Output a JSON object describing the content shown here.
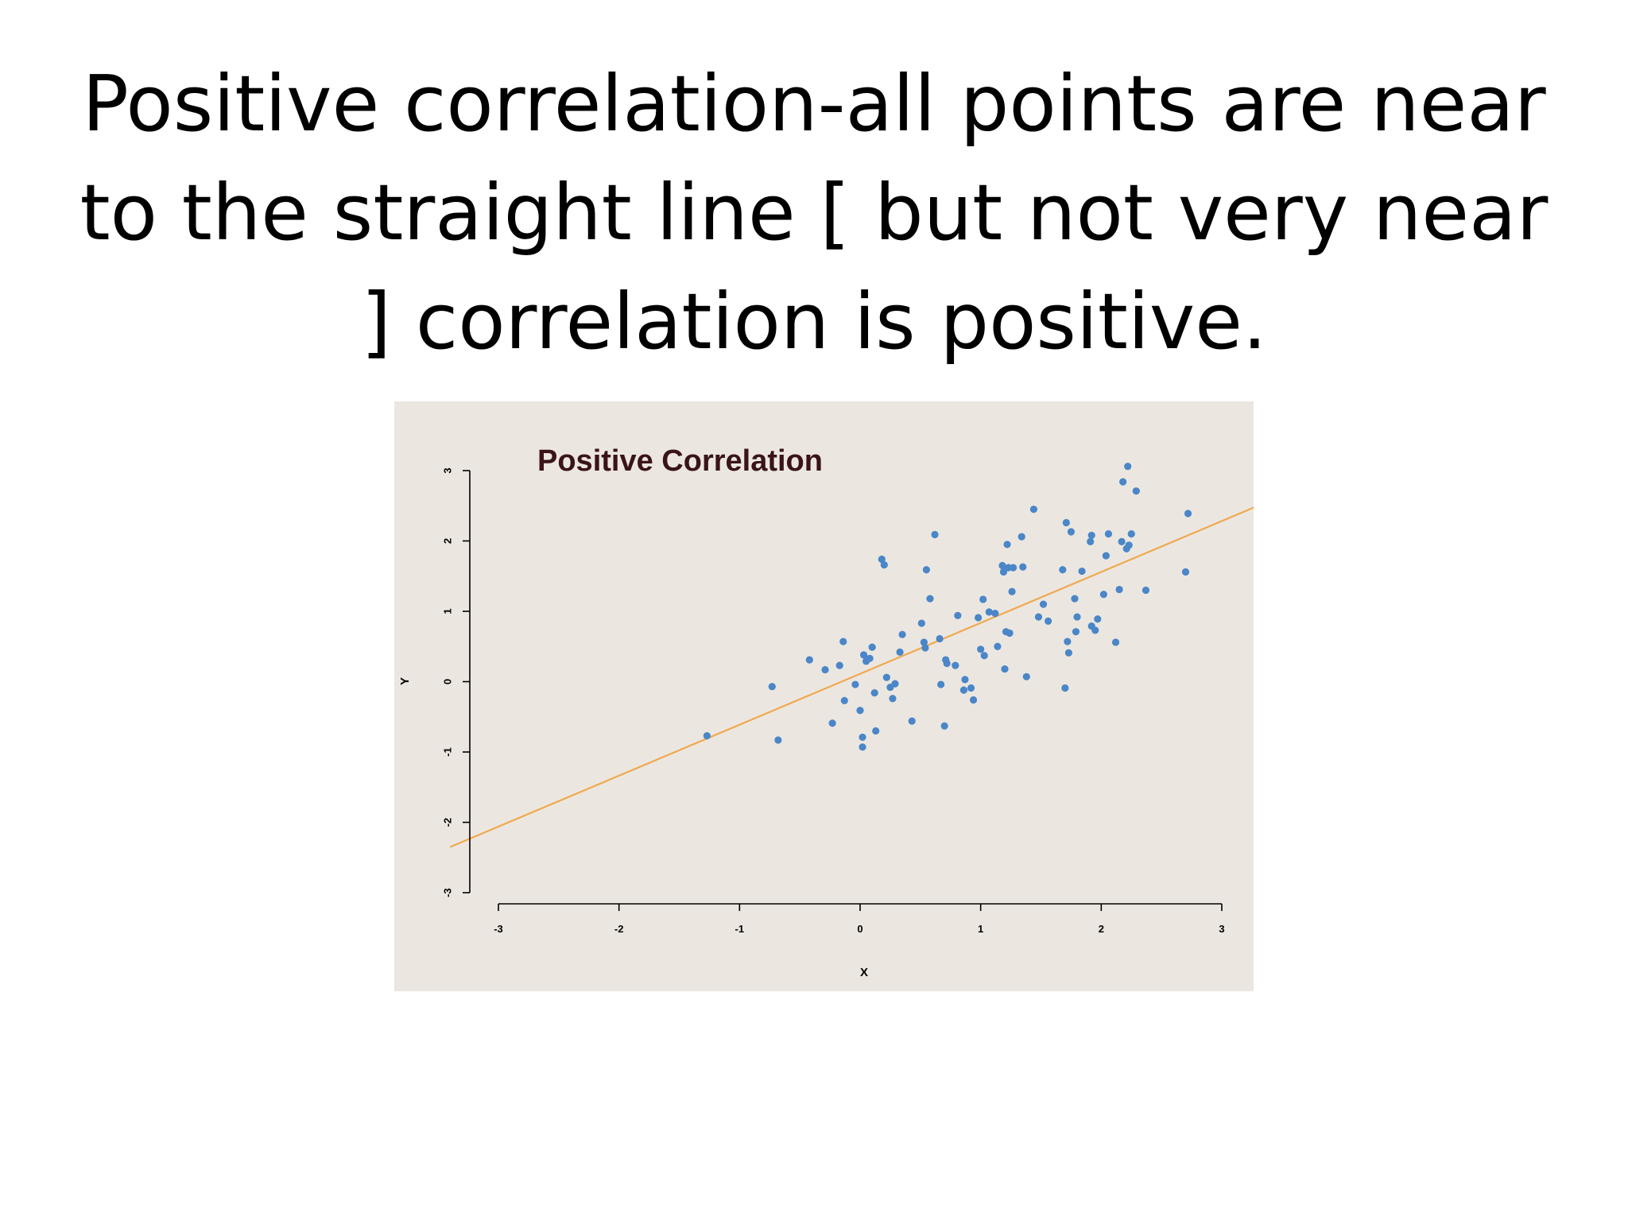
{
  "slide": {
    "title": "Positive correlation-all points are near to the straight line [ but not very near ] correlation is positive."
  },
  "chart_data": {
    "type": "scatter",
    "title": "Positive Correlation",
    "xlabel": "X",
    "ylabel": "Y",
    "xlim": [
      -3,
      3
    ],
    "ylim": [
      -3,
      3
    ],
    "xticks": [
      -3,
      -2,
      -1,
      0,
      1,
      2,
      3
    ],
    "yticks": [
      -3,
      -2,
      -1,
      0,
      1,
      2,
      3
    ],
    "x_tick_labels": [
      "-3",
      "-2",
      "-1",
      "0",
      "1",
      "2",
      "3"
    ],
    "y_tick_labels": [
      "-3",
      "-2",
      "-1",
      "0",
      "1",
      "2",
      "3"
    ],
    "grid": false,
    "background_color": "#ebe7e0",
    "point_color": "#4a86c8",
    "line_color": "#f0a850",
    "trend_line": {
      "x": [
        -3.4,
        3.3
      ],
      "y": [
        -2.35,
        2.5
      ]
    },
    "points": [
      {
        "x": -1.27,
        "y": -0.77
      },
      {
        "x": -0.73,
        "y": -0.07
      },
      {
        "x": -0.68,
        "y": -0.83
      },
      {
        "x": -0.42,
        "y": 0.31
      },
      {
        "x": -0.29,
        "y": 0.17
      },
      {
        "x": -0.23,
        "y": -0.59
      },
      {
        "x": -0.17,
        "y": 0.23
      },
      {
        "x": -0.14,
        "y": 0.57
      },
      {
        "x": -0.13,
        "y": -0.27
      },
      {
        "x": -0.04,
        "y": -0.04
      },
      {
        "x": 0.0,
        "y": -0.41
      },
      {
        "x": 0.02,
        "y": -0.79
      },
      {
        "x": 0.02,
        "y": -0.93
      },
      {
        "x": 0.03,
        "y": 0.38
      },
      {
        "x": 0.05,
        "y": 0.29
      },
      {
        "x": 0.08,
        "y": 0.33
      },
      {
        "x": 0.1,
        "y": 0.49
      },
      {
        "x": 0.12,
        "y": -0.16
      },
      {
        "x": 0.13,
        "y": -0.7
      },
      {
        "x": 0.18,
        "y": 1.74
      },
      {
        "x": 0.2,
        "y": 1.66
      },
      {
        "x": 0.22,
        "y": 0.06
      },
      {
        "x": 0.25,
        "y": -0.08
      },
      {
        "x": 0.27,
        "y": -0.24
      },
      {
        "x": 0.29,
        "y": -0.03
      },
      {
        "x": 0.33,
        "y": 0.42
      },
      {
        "x": 0.35,
        "y": 0.67
      },
      {
        "x": 0.43,
        "y": -0.56
      },
      {
        "x": 0.51,
        "y": 0.83
      },
      {
        "x": 0.53,
        "y": 0.56
      },
      {
        "x": 0.54,
        "y": 0.48
      },
      {
        "x": 0.55,
        "y": 1.59
      },
      {
        "x": 0.58,
        "y": 1.18
      },
      {
        "x": 0.62,
        "y": 2.09
      },
      {
        "x": 0.66,
        "y": 0.61
      },
      {
        "x": 0.67,
        "y": -0.04
      },
      {
        "x": 0.7,
        "y": -0.63
      },
      {
        "x": 0.71,
        "y": 0.31
      },
      {
        "x": 0.72,
        "y": 0.26
      },
      {
        "x": 0.79,
        "y": 0.23
      },
      {
        "x": 0.81,
        "y": 0.94
      },
      {
        "x": 0.86,
        "y": -0.12
      },
      {
        "x": 0.87,
        "y": 0.03
      },
      {
        "x": 0.92,
        "y": -0.09
      },
      {
        "x": 0.94,
        "y": -0.26
      },
      {
        "x": 0.98,
        "y": 0.91
      },
      {
        "x": 1.0,
        "y": 0.46
      },
      {
        "x": 1.02,
        "y": 1.17
      },
      {
        "x": 1.03,
        "y": 0.37
      },
      {
        "x": 1.07,
        "y": 0.99
      },
      {
        "x": 1.12,
        "y": 0.97
      },
      {
        "x": 1.14,
        "y": 0.5
      },
      {
        "x": 1.18,
        "y": 1.65
      },
      {
        "x": 1.19,
        "y": 1.56
      },
      {
        "x": 1.2,
        "y": 0.18
      },
      {
        "x": 1.21,
        "y": 0.71
      },
      {
        "x": 1.22,
        "y": 1.95
      },
      {
        "x": 1.23,
        "y": 1.62
      },
      {
        "x": 1.24,
        "y": 0.69
      },
      {
        "x": 1.26,
        "y": 1.28
      },
      {
        "x": 1.27,
        "y": 1.62
      },
      {
        "x": 1.34,
        "y": 2.06
      },
      {
        "x": 1.35,
        "y": 1.63
      },
      {
        "x": 1.38,
        "y": 0.07
      },
      {
        "x": 1.44,
        "y": 2.45
      },
      {
        "x": 1.48,
        "y": 0.92
      },
      {
        "x": 1.52,
        "y": 1.1
      },
      {
        "x": 1.56,
        "y": 0.86
      },
      {
        "x": 1.68,
        "y": 1.59
      },
      {
        "x": 1.7,
        "y": -0.09
      },
      {
        "x": 1.71,
        "y": 2.26
      },
      {
        "x": 1.72,
        "y": 0.57
      },
      {
        "x": 1.73,
        "y": 0.41
      },
      {
        "x": 1.75,
        "y": 2.13
      },
      {
        "x": 1.78,
        "y": 1.18
      },
      {
        "x": 1.79,
        "y": 0.71
      },
      {
        "x": 1.8,
        "y": 0.92
      },
      {
        "x": 1.84,
        "y": 1.57
      },
      {
        "x": 1.91,
        "y": 1.99
      },
      {
        "x": 1.92,
        "y": 2.08
      },
      {
        "x": 1.92,
        "y": 0.79
      },
      {
        "x": 1.95,
        "y": 0.73
      },
      {
        "x": 1.97,
        "y": 0.89
      },
      {
        "x": 2.02,
        "y": 1.24
      },
      {
        "x": 2.04,
        "y": 1.79
      },
      {
        "x": 2.06,
        "y": 2.1
      },
      {
        "x": 2.12,
        "y": 0.56
      },
      {
        "x": 2.15,
        "y": 1.31
      },
      {
        "x": 2.17,
        "y": 1.99
      },
      {
        "x": 2.18,
        "y": 2.84
      },
      {
        "x": 2.21,
        "y": 1.89
      },
      {
        "x": 2.22,
        "y": 3.06
      },
      {
        "x": 2.23,
        "y": 1.94
      },
      {
        "x": 2.25,
        "y": 2.1
      },
      {
        "x": 2.29,
        "y": 2.71
      },
      {
        "x": 2.37,
        "y": 1.3
      },
      {
        "x": 2.7,
        "y": 1.56
      },
      {
        "x": 2.72,
        "y": 2.39
      }
    ]
  }
}
